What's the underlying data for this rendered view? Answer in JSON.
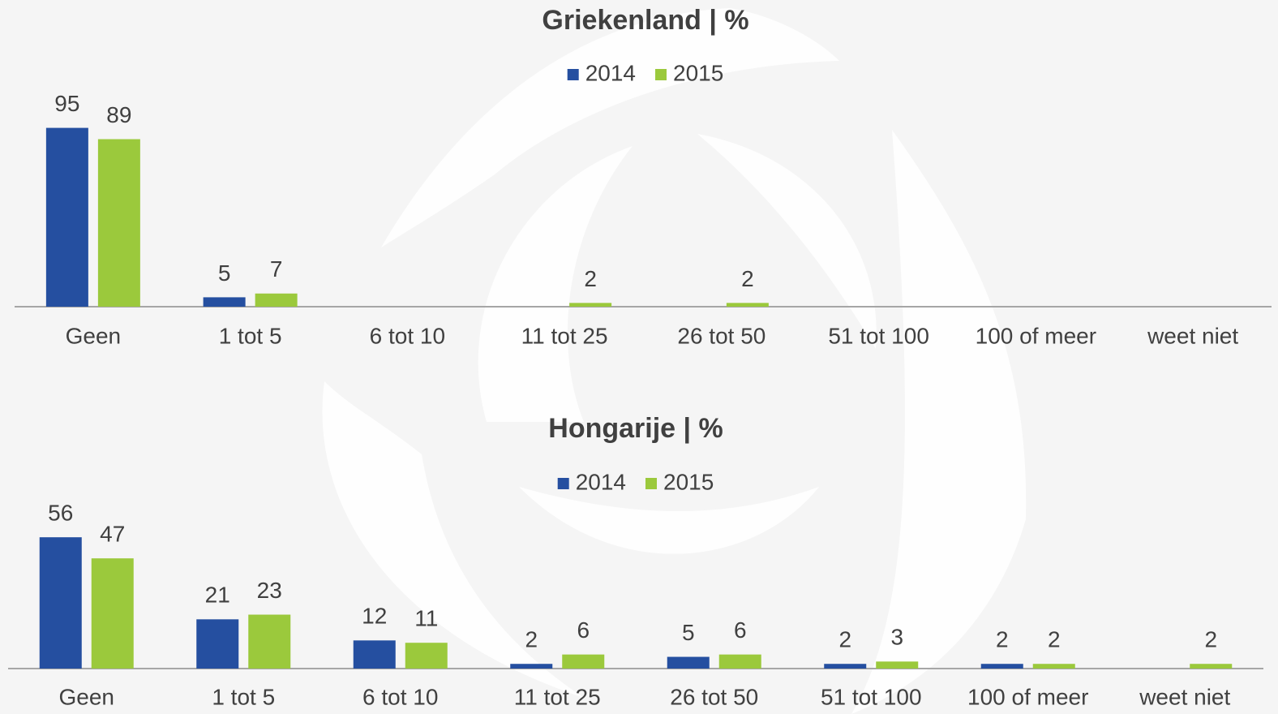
{
  "chart_data": [
    {
      "type": "bar",
      "title": "Griekenland | %",
      "categories": [
        "Geen",
        "1 tot 5",
        "6 tot 10",
        "11 tot 25",
        "26 tot 50",
        "51 tot 100",
        "100 of meer",
        "weet niet"
      ],
      "series": [
        {
          "name": "2014",
          "color": "#254fa0",
          "values": [
            95,
            5,
            null,
            null,
            null,
            null,
            null,
            null
          ]
        },
        {
          "name": "2015",
          "color": "#9bc93c",
          "values": [
            89,
            7,
            null,
            2,
            2,
            null,
            null,
            null
          ]
        }
      ],
      "legend": "top"
    },
    {
      "type": "bar",
      "title": "Hongarije | %",
      "categories": [
        "Geen",
        "1 tot 5",
        "6 tot 10",
        "11 tot 25",
        "26 tot 50",
        "51 tot 100",
        "100 of meer",
        "weet niet"
      ],
      "series": [
        {
          "name": "2014",
          "color": "#254fa0",
          "values": [
            56,
            21,
            12,
            2,
            5,
            2,
            2,
            null
          ]
        },
        {
          "name": "2015",
          "color": "#9bc93c",
          "values": [
            47,
            23,
            11,
            6,
            6,
            3,
            2,
            2
          ]
        }
      ],
      "legend": "top"
    }
  ]
}
